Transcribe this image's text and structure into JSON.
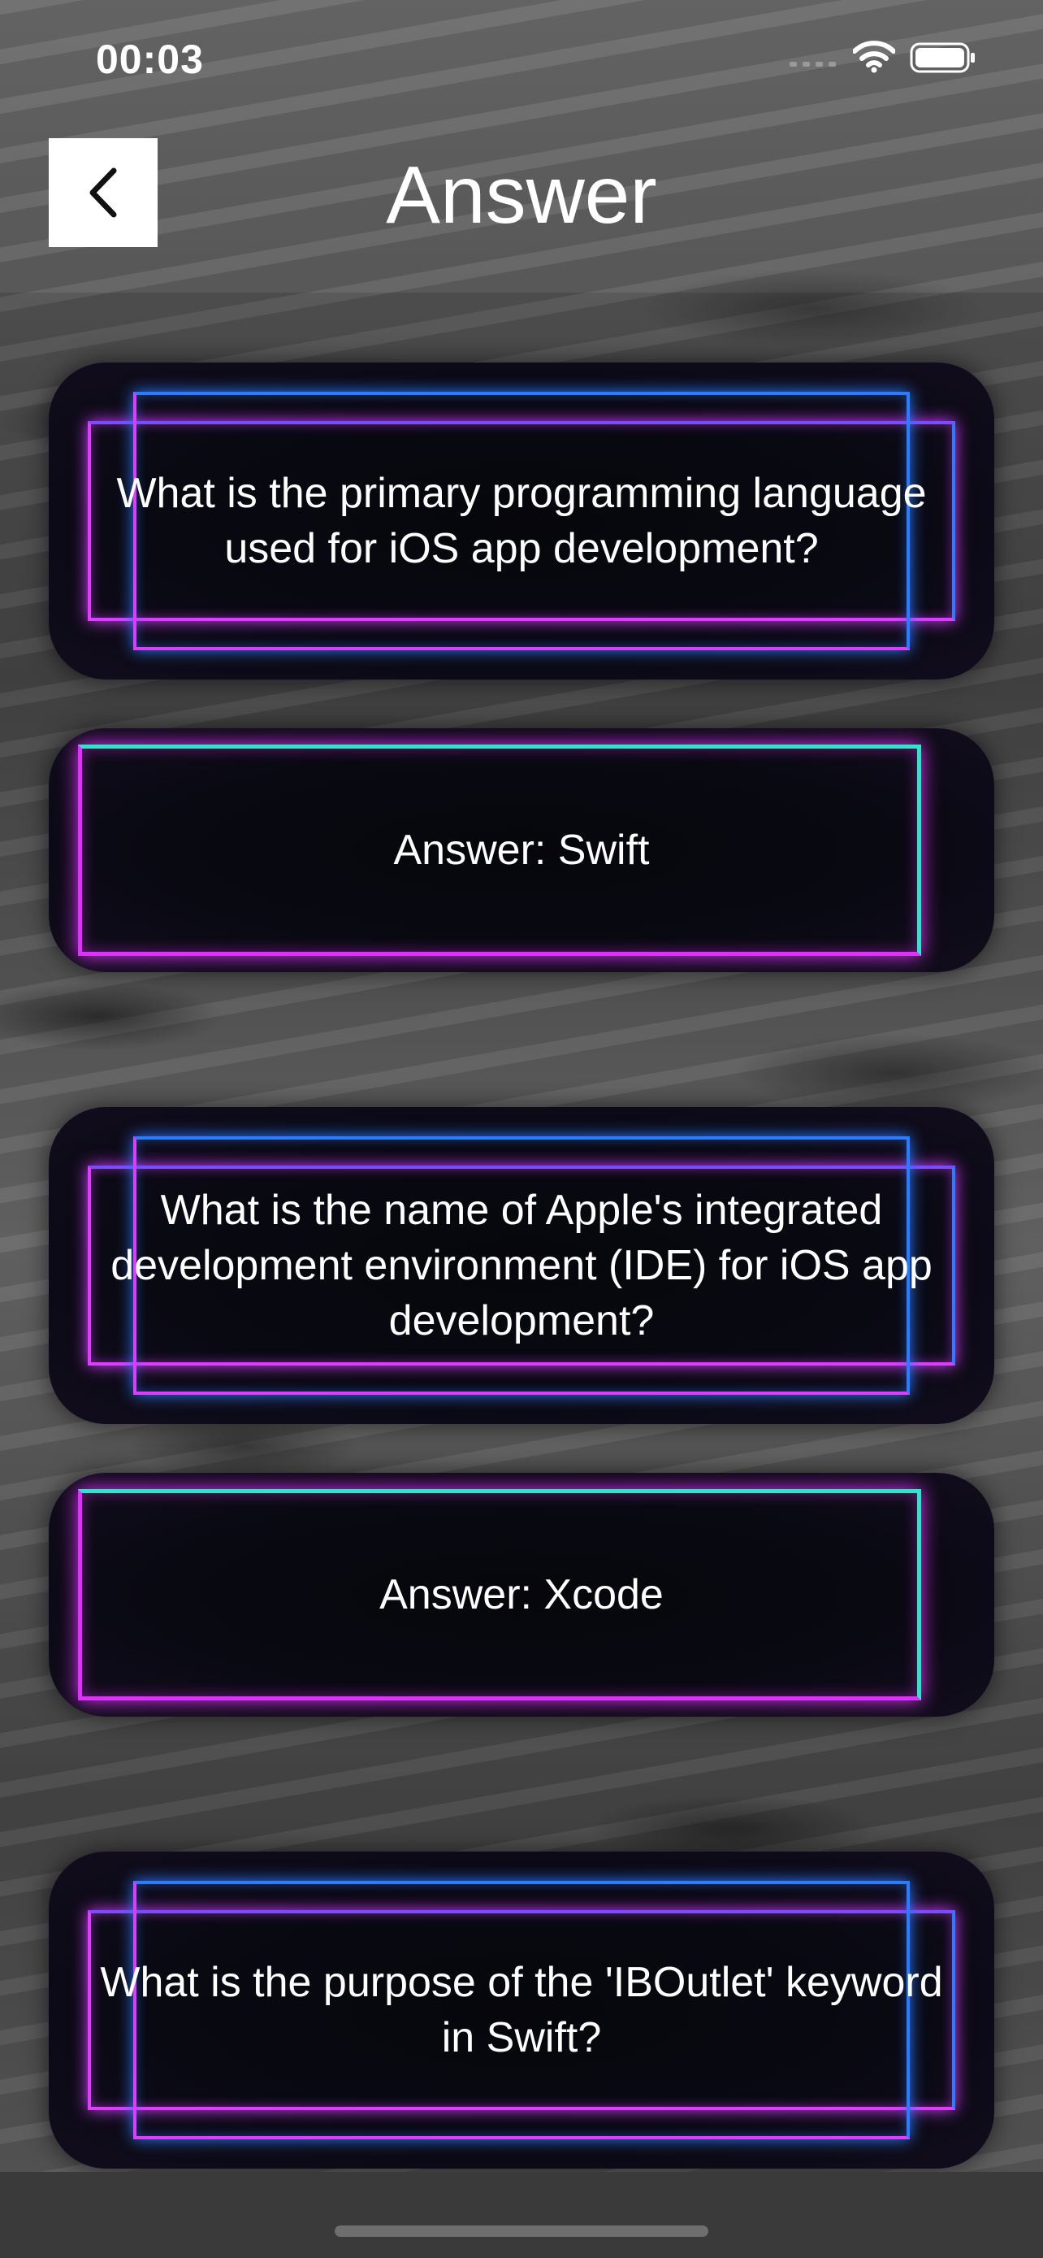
{
  "status_bar": {
    "time": "00:03"
  },
  "nav": {
    "title": "Answer"
  },
  "cards": [
    {
      "type": "question",
      "text": "What is the primary programming language used for iOS app development?"
    },
    {
      "type": "answer",
      "text": "Answer: Swift"
    },
    {
      "type": "question",
      "text": "What is the name of Apple's integrated development environment (IDE) for iOS app development?"
    },
    {
      "type": "answer",
      "text": "Answer: Xcode"
    },
    {
      "type": "question",
      "text": "What is the purpose of the 'IBOutlet' keyword in Swift?"
    }
  ],
  "colors": {
    "neon_pink": "#e03cff",
    "neon_blue": "#2d7bff",
    "neon_teal": "#2ce6c8",
    "card_background": "#090912"
  },
  "icons": {
    "back": "chevron-left-icon",
    "signal": "cellular-signal-icon",
    "wifi": "wifi-icon",
    "battery": "battery-icon"
  }
}
